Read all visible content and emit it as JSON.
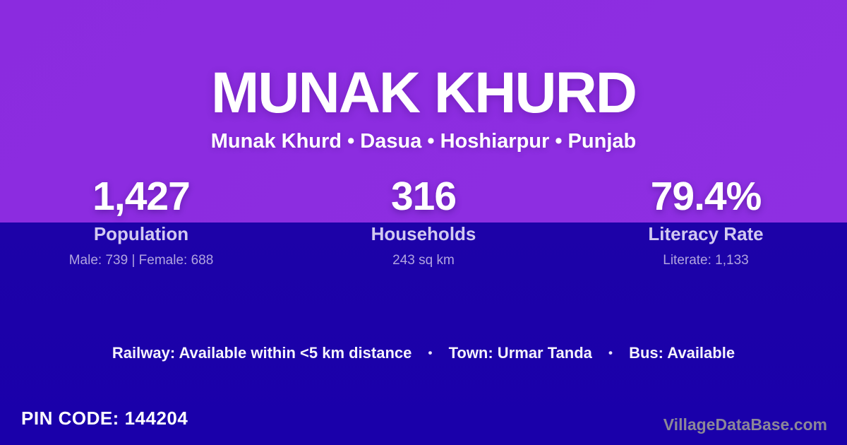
{
  "colors": {
    "top_bg": "#8B2BDF",
    "bottom_bg": "#1D02A8",
    "accent_text": "#D2C9F0",
    "muted_text": "#B1A5DF",
    "watermark": "#8B8797"
  },
  "header": {
    "title": "MUNAK KHURD",
    "subtitle": "Munak Khurd • Dasua • Hoshiarpur • Punjab"
  },
  "stats": [
    {
      "value": "1,427",
      "label": "Population",
      "detail": "Male: 739 | Female: 688"
    },
    {
      "value": "316",
      "label": "Households",
      "detail": "243 sq km"
    },
    {
      "value": "79.4%",
      "label": "Literacy Rate",
      "detail": "Literate: 1,133"
    }
  ],
  "transport": {
    "separator": "•",
    "items": [
      "Railway: Available within <5 km distance",
      "Town: Urmar Tanda",
      "Bus: Available"
    ]
  },
  "footer": {
    "pin_code_label": "PIN CODE:",
    "pin_code_value": "144204",
    "watermark": "VillageDataBase.com"
  }
}
